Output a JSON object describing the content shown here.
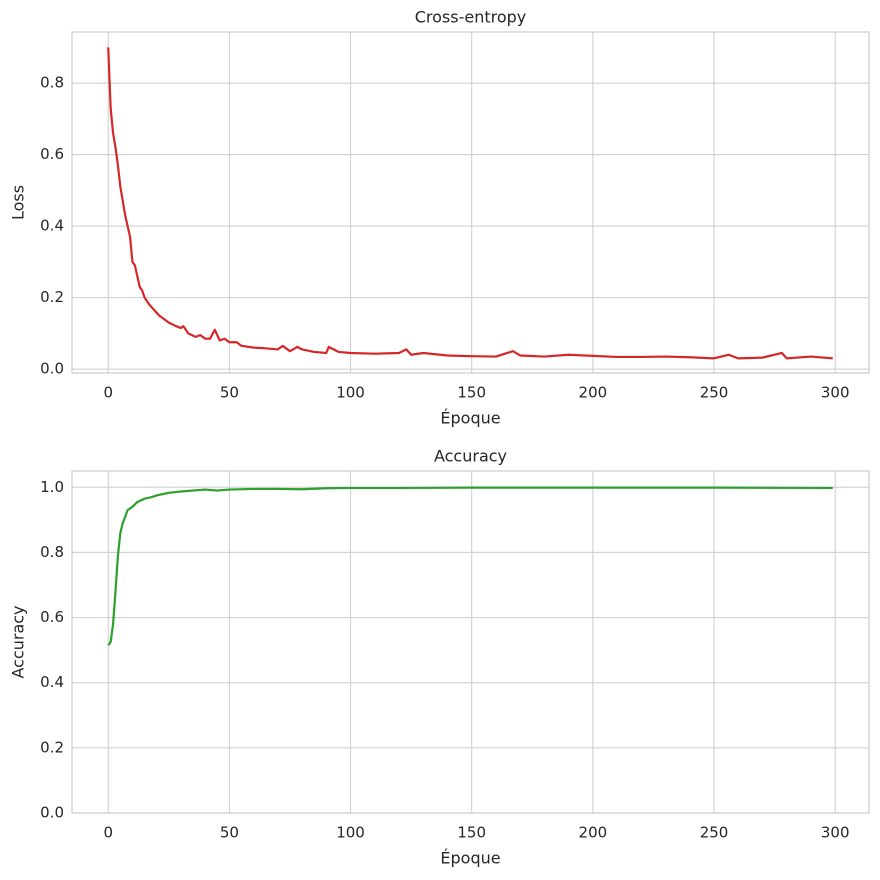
{
  "chart_data": [
    {
      "type": "line",
      "title": "Cross-entropy",
      "xlabel": "Époque",
      "ylabel": "Loss",
      "color": "#d62728",
      "x": [
        0,
        1,
        2,
        3,
        4,
        5,
        6,
        7,
        8,
        9,
        10,
        11,
        12,
        13,
        14,
        15,
        17,
        19,
        21,
        23,
        25,
        28,
        30,
        31,
        33,
        36,
        38,
        40,
        42,
        44,
        46,
        48,
        50,
        53,
        55,
        60,
        65,
        70,
        72,
        75,
        78,
        80,
        85,
        90,
        91,
        95,
        100,
        110,
        120,
        123,
        125,
        130,
        140,
        150,
        160,
        167,
        170,
        180,
        190,
        200,
        210,
        220,
        230,
        240,
        250,
        256,
        260,
        270,
        278,
        280,
        290,
        299
      ],
      "values": [
        0.9,
        0.73,
        0.66,
        0.62,
        0.57,
        0.51,
        0.47,
        0.43,
        0.4,
        0.37,
        0.3,
        0.29,
        0.26,
        0.23,
        0.22,
        0.2,
        0.18,
        0.165,
        0.15,
        0.14,
        0.13,
        0.12,
        0.115,
        0.12,
        0.1,
        0.09,
        0.095,
        0.085,
        0.085,
        0.11,
        0.08,
        0.085,
        0.075,
        0.075,
        0.065,
        0.06,
        0.058,
        0.055,
        0.065,
        0.05,
        0.062,
        0.055,
        0.048,
        0.045,
        0.062,
        0.048,
        0.045,
        0.043,
        0.045,
        0.055,
        0.04,
        0.045,
        0.038,
        0.036,
        0.035,
        0.05,
        0.038,
        0.035,
        0.04,
        0.037,
        0.034,
        0.034,
        0.035,
        0.033,
        0.03,
        0.04,
        0.03,
        0.032,
        0.045,
        0.03,
        0.035,
        0.03
      ],
      "xlim": [
        -14.95,
        313.95
      ],
      "xticks": [
        0,
        50,
        100,
        150,
        200,
        250,
        300
      ],
      "ylim": [
        -0.011,
        0.943
      ],
      "yticks": [
        {
          "value": 0,
          "label": "0.0"
        },
        0.2,
        0.4,
        0.6,
        0.8
      ],
      "grid": true
    },
    {
      "type": "line",
      "title": "Accuracy",
      "xlabel": "Époque",
      "ylabel": "Accuracy",
      "color": "#2ca02c",
      "x": [
        0,
        1,
        2,
        3,
        4,
        5,
        6,
        7,
        8,
        10,
        12,
        15,
        18,
        20,
        25,
        30,
        35,
        40,
        45,
        50,
        60,
        70,
        80,
        90,
        100,
        120,
        150,
        200,
        250,
        299
      ],
      "values": [
        0.515,
        0.525,
        0.58,
        0.68,
        0.79,
        0.86,
        0.89,
        0.91,
        0.93,
        0.94,
        0.955,
        0.965,
        0.97,
        0.975,
        0.983,
        0.987,
        0.99,
        0.993,
        0.99,
        0.993,
        0.995,
        0.995,
        0.994,
        0.997,
        0.998,
        0.998,
        0.999,
        0.999,
        0.999,
        0.998
      ],
      "xlim": [
        -14.95,
        313.95
      ],
      "xticks": [
        0,
        50,
        100,
        150,
        200,
        250,
        300
      ],
      "ylim": [
        0,
        1.05
      ],
      "yticks": [
        {
          "value": 0,
          "label": "0.0"
        },
        0.2,
        0.4,
        0.6,
        0.8,
        {
          "value": 1,
          "label": "1.0"
        }
      ],
      "grid": true
    }
  ]
}
